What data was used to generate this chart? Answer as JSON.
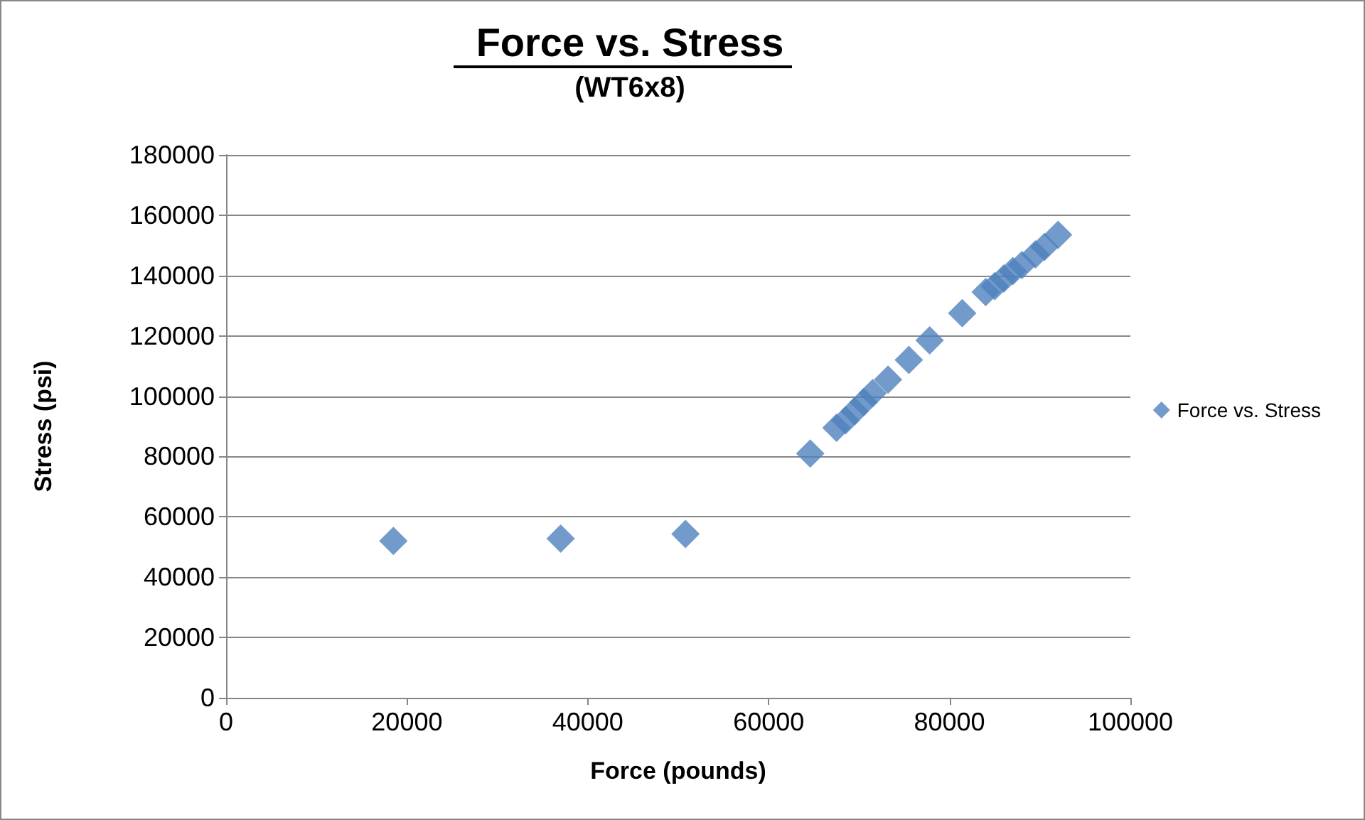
{
  "chart_data": {
    "type": "scatter",
    "title": "Force vs. Stress",
    "subtitle": "(WT6x8)",
    "xlabel": "Force (pounds)",
    "ylabel": "Stress (psi)",
    "x": [
      18500,
      37000,
      50800,
      64600,
      67500,
      68500,
      69500,
      70500,
      71500,
      73200,
      75500,
      77800,
      81400,
      84000,
      85000,
      86000,
      87000,
      88000,
      89500,
      90500,
      92000
    ],
    "series": [
      {
        "name": "Force vs. Stress",
        "color": "#4f81bd",
        "values": [
          52000,
          52800,
          54300,
          81000,
          89500,
          92000,
          95000,
          98000,
          101000,
          105500,
          112000,
          118500,
          127500,
          134500,
          136500,
          139000,
          141500,
          143500,
          147000,
          149500,
          153500
        ]
      }
    ],
    "xlim": [
      0,
      100000
    ],
    "xticks": [
      0,
      20000,
      40000,
      60000,
      80000,
      100000
    ],
    "ylim": [
      0,
      180000
    ],
    "yticks": [
      0,
      20000,
      40000,
      60000,
      80000,
      100000,
      120000,
      140000,
      160000,
      180000
    ],
    "grid": "y",
    "legend": "right",
    "marker": "diamond"
  }
}
